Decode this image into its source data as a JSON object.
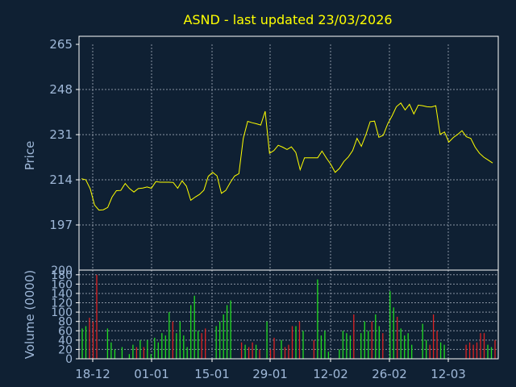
{
  "colors": {
    "background": "#0f2033",
    "frame": "#ffffff",
    "grid": "#8a94a3",
    "title": "#ffff00",
    "text": "#9fb8d8",
    "price_line": "#ffff00",
    "volume_up": "#22dd22",
    "volume_down": "#dd2222"
  },
  "chart_data": [
    {
      "type": "line",
      "title": "ASND - last updated 23/03/2026",
      "ylabel": "Price",
      "ylim": [
        180,
        265
      ],
      "yticks": [
        "265",
        "248",
        "231",
        "214",
        "197"
      ],
      "grid": true,
      "series": [
        {
          "values": [
            214.4,
            214.0,
            210.6,
            204.5,
            202.6,
            202.7,
            203.6,
            207.5,
            209.9,
            210.0,
            212.6,
            210.7,
            209.4,
            210.7,
            210.9,
            211.3,
            210.8,
            213.3,
            213.1,
            213.1,
            213.1,
            213.0,
            210.8,
            213.6,
            211.6,
            206.3,
            207.5,
            208.5,
            210.1,
            215.3,
            216.8,
            215.5,
            208.9,
            210.0,
            212.9,
            215.4,
            216.3,
            229.5,
            236.0,
            235.5,
            235.1,
            234.6,
            239.8,
            224.0,
            225.0,
            227.0,
            226.3,
            225.4,
            226.4,
            224.3,
            217.8,
            222.3,
            222.3,
            222.3,
            222.3,
            224.8,
            222.2,
            219.8,
            216.8,
            218.3,
            220.9,
            222.6,
            225.0,
            229.6,
            226.6,
            230.9,
            235.9,
            236.1,
            230.0,
            230.8,
            235.0,
            238.0,
            241.5,
            242.9,
            240.3,
            242.4,
            238.8,
            242.1,
            241.9,
            241.5,
            241.4,
            241.9,
            231.1,
            232.0,
            228.2,
            229.9,
            231.1,
            232.5,
            230.2,
            229.6,
            226.3,
            224.0,
            222.5,
            221.4,
            220.3
          ]
        }
      ]
    },
    {
      "type": "bar",
      "ylabel": "Volume (0000)",
      "ylim": [
        0,
        190
      ],
      "yticks": [
        "180",
        "160",
        "140",
        "120",
        "100",
        "80",
        "60",
        "40",
        "20",
        "0"
      ],
      "top_label": "200",
      "xlabels": [
        "18-12",
        "01-01",
        "15-01",
        "29-01",
        "12-02",
        "26-02",
        "12-03"
      ],
      "grid": true,
      "values": [
        65,
        70,
        88,
        80,
        180,
        0,
        0,
        65,
        35,
        20,
        0,
        25,
        0,
        10,
        30,
        25,
        40,
        25,
        40,
        10,
        45,
        35,
        55,
        50,
        100,
        80,
        55,
        80,
        50,
        25,
        115,
        135,
        60,
        55,
        65,
        0,
        0,
        70,
        80,
        95,
        115,
        125,
        0,
        0,
        35,
        30,
        25,
        35,
        30,
        20,
        0,
        80,
        20,
        45,
        0,
        40,
        25,
        30,
        70,
        70,
        80,
        60,
        0,
        0,
        40,
        170,
        50,
        60,
        15,
        0,
        0,
        20,
        60,
        55,
        50,
        95,
        0,
        55,
        80,
        60,
        80,
        95,
        70,
        55,
        0,
        145,
        110,
        90,
        65,
        50,
        55,
        30,
        0,
        0,
        75,
        40,
        30,
        95,
        60,
        35,
        30,
        0,
        0,
        0,
        0,
        0,
        30,
        35,
        30,
        35,
        55,
        55,
        30,
        25,
        40
      ],
      "up": [
        true,
        true,
        false,
        false,
        false,
        true,
        true,
        true,
        true,
        true,
        true,
        true,
        true,
        true,
        true,
        false,
        true,
        false,
        true,
        true,
        true,
        true,
        true,
        true,
        true,
        false,
        true,
        true,
        true,
        true,
        true,
        true,
        true,
        false,
        false,
        false,
        false,
        true,
        true,
        true,
        true,
        true,
        true,
        true,
        false,
        true,
        false,
        false,
        true,
        false,
        true,
        true,
        false,
        false,
        true,
        true,
        false,
        false,
        false,
        true,
        false,
        true,
        true,
        true,
        false,
        true,
        true,
        true,
        true,
        true,
        true,
        true,
        true,
        true,
        true,
        false,
        true,
        true,
        true,
        true,
        false,
        true,
        true,
        false,
        true,
        true,
        true,
        false,
        true,
        true,
        true,
        true,
        false,
        true,
        true,
        true,
        false,
        false,
        false,
        true,
        true,
        true,
        true,
        true,
        true,
        true,
        false,
        false,
        false,
        false,
        false,
        false,
        true,
        true,
        false
      ]
    }
  ]
}
